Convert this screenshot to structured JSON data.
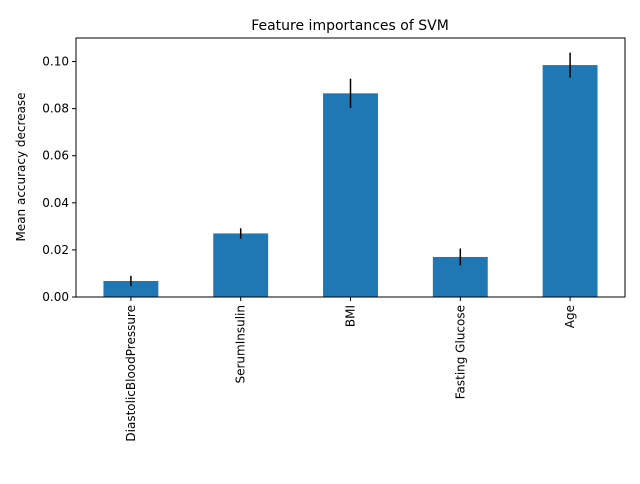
{
  "chart_data": {
    "type": "bar",
    "title": "Feature importances of SVM",
    "xlabel": "",
    "ylabel": "Mean accuracy decrease",
    "categories": [
      "DiastolicBloodPressure",
      "SerumInsulin",
      "BMI",
      "Fasting Glucose",
      "Age"
    ],
    "values": [
      0.0068,
      0.027,
      0.0865,
      0.017,
      0.0985
    ],
    "errors": [
      0.0022,
      0.0022,
      0.0062,
      0.0036,
      0.0053
    ],
    "ylim": [
      0,
      0.11
    ],
    "yticks": [
      0.0,
      0.02,
      0.04,
      0.06,
      0.08,
      0.1
    ],
    "ytick_labels": [
      "0.00",
      "0.02",
      "0.04",
      "0.06",
      "0.08",
      "0.10"
    ],
    "grid": false,
    "legend": false,
    "colors": {
      "bar": "#1f77b4",
      "error": "#000000",
      "axis": "#000000"
    }
  }
}
